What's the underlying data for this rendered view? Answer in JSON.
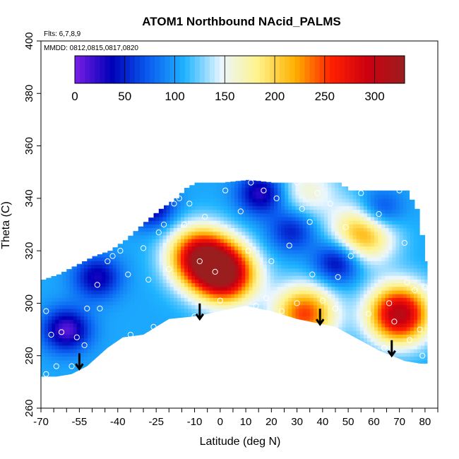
{
  "chart_data": {
    "type": "heatmap",
    "title": "ATOM1 Northbound NAcid_PALMS",
    "notes": [
      "Flts: 6,7,8,9",
      "MMDD: 0812,0815,0817,0820"
    ],
    "xlabel": "Latitude (deg N)",
    "ylabel": "Theta (C)",
    "xlim": [
      -70,
      85
    ],
    "ylim": [
      260,
      400
    ],
    "x_ticks": [
      -70,
      -55,
      -40,
      -25,
      -10,
      0,
      10,
      20,
      30,
      40,
      50,
      60,
      70,
      80
    ],
    "y_ticks": [
      260,
      280,
      300,
      320,
      340,
      360,
      380,
      400
    ],
    "colorbar": {
      "range": [
        0,
        330
      ],
      "ticks": [
        0,
        50,
        100,
        150,
        200,
        250,
        300
      ],
      "colors": [
        "#7a1fe6",
        "#0000b8",
        "#0a5cf0",
        "#1fb4ff",
        "#eaf6ff",
        "#fff38a",
        "#ffb000",
        "#ff2000",
        "#cc0010",
        "#9a1e1e"
      ]
    },
    "hot_spots": [
      {
        "lat": 2,
        "theta": 311,
        "value": 310
      },
      {
        "lat": -8,
        "theta": 318,
        "value": 290
      },
      {
        "lat": 70,
        "theta": 296,
        "value": 310
      },
      {
        "lat": 33,
        "theta": 296,
        "value": 250
      },
      {
        "lat": 56,
        "theta": 327,
        "value": 230
      },
      {
        "lat": 34,
        "theta": 343,
        "value": 160
      }
    ],
    "cold_spots": [
      {
        "lat": -60,
        "theta": 290,
        "value": 10
      },
      {
        "lat": -48,
        "theta": 310,
        "value": 30
      },
      {
        "lat": -27,
        "theta": 337,
        "value": 25
      },
      {
        "lat": 28,
        "theta": 328,
        "value": 45
      },
      {
        "lat": 16,
        "theta": 342,
        "value": 20
      },
      {
        "lat": 46,
        "theta": 316,
        "value": 25
      },
      {
        "lat": 62,
        "theta": 335,
        "value": 35
      }
    ],
    "sample_points": [
      [
        -68,
        273
      ],
      [
        -66,
        288
      ],
      [
        -68,
        297
      ],
      [
        -62,
        289
      ],
      [
        -58,
        276
      ],
      [
        -56,
        287
      ],
      [
        -53,
        284
      ],
      [
        -52,
        298
      ],
      [
        -48,
        307
      ],
      [
        -47,
        298
      ],
      [
        -44,
        316
      ],
      [
        -42,
        318
      ],
      [
        -39,
        320
      ],
      [
        -36,
        311
      ],
      [
        -35,
        288
      ],
      [
        -30,
        321
      ],
      [
        -28,
        309
      ],
      [
        -26,
        291
      ],
      [
        -24,
        327
      ],
      [
        -22,
        330
      ],
      [
        -20,
        313
      ],
      [
        -18,
        338
      ],
      [
        -16,
        340
      ],
      [
        -14,
        330
      ],
      [
        -12,
        338
      ],
      [
        -8,
        316
      ],
      [
        -6,
        333
      ],
      [
        -2,
        312
      ],
      [
        2,
        343
      ],
      [
        6,
        297
      ],
      [
        8,
        335
      ],
      [
        11,
        320
      ],
      [
        12,
        346
      ],
      [
        14,
        299
      ],
      [
        17,
        343
      ],
      [
        20,
        316
      ],
      [
        22,
        340
      ],
      [
        24,
        297
      ],
      [
        27,
        322
      ],
      [
        30,
        346
      ],
      [
        32,
        336
      ],
      [
        35,
        331
      ],
      [
        36,
        311
      ],
      [
        38,
        342
      ],
      [
        40,
        301
      ],
      [
        43,
        338
      ],
      [
        46,
        310
      ],
      [
        49,
        329
      ],
      [
        51,
        318
      ],
      [
        55,
        342
      ],
      [
        58,
        296
      ],
      [
        62,
        334
      ],
      [
        66,
        300
      ],
      [
        68,
        293
      ],
      [
        70,
        343
      ],
      [
        72,
        323
      ],
      [
        73,
        308
      ],
      [
        74,
        286
      ],
      [
        76,
        305
      ],
      [
        78,
        290
      ],
      [
        80,
        306
      ],
      [
        79,
        280
      ],
      [
        -64,
        276
      ],
      [
        -44,
        276
      ],
      [
        -10,
        295
      ],
      [
        0,
        301
      ],
      [
        18,
        302
      ],
      [
        45,
        298
      ],
      [
        64,
        283
      ],
      [
        30,
        300
      ]
    ],
    "arrows": [
      {
        "lat": -55,
        "theta": 275
      },
      {
        "lat": -8,
        "theta": 294
      },
      {
        "lat": 39,
        "theta": 292
      },
      {
        "lat": 67,
        "theta": 280
      }
    ]
  }
}
